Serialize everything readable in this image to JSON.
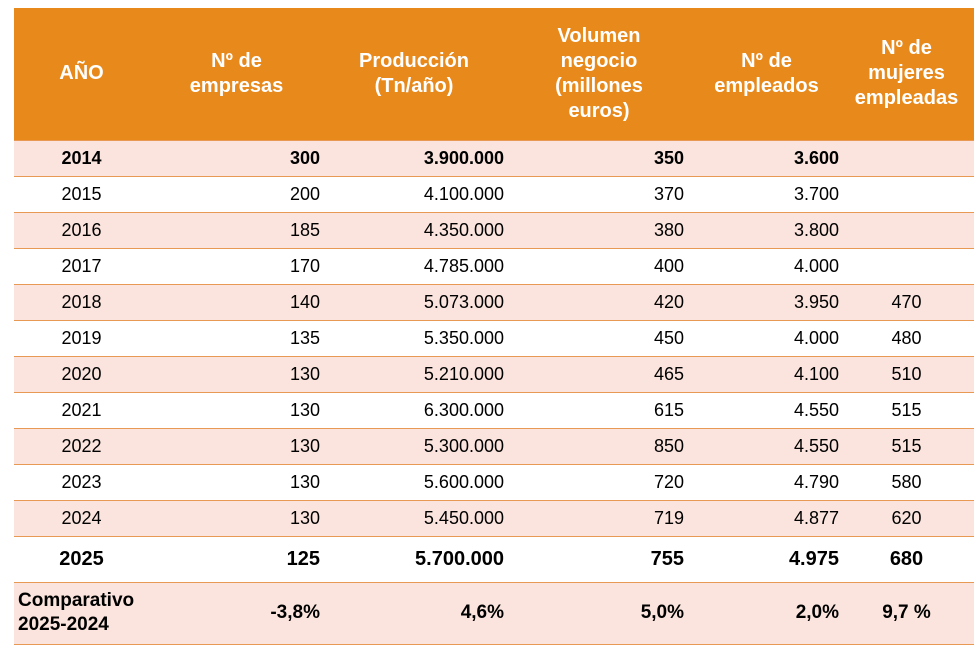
{
  "table": {
    "headers": [
      [
        "AÑO"
      ],
      [
        "Nº de",
        "empresas"
      ],
      [
        "Producción",
        "(Tn/año)"
      ],
      [
        "Volumen",
        "negocio",
        "(millones",
        "euros)"
      ],
      [
        "Nº de",
        "empleados"
      ],
      [
        "Nº de",
        "mujeres",
        "empleadas"
      ]
    ],
    "rows": [
      {
        "year": "2014",
        "empresas": "300",
        "produccion": "3.900.000",
        "volumen": "350",
        "empleados": "3.600",
        "mujeres": ""
      },
      {
        "year": "2015",
        "empresas": "200",
        "produccion": "4.100.000",
        "volumen": "370",
        "empleados": "3.700",
        "mujeres": ""
      },
      {
        "year": "2016",
        "empresas": "185",
        "produccion": "4.350.000",
        "volumen": "380",
        "empleados": "3.800",
        "mujeres": ""
      },
      {
        "year": "2017",
        "empresas": "170",
        "produccion": "4.785.000",
        "volumen": "400",
        "empleados": "4.000",
        "mujeres": ""
      },
      {
        "year": "2018",
        "empresas": "140",
        "produccion": "5.073.000",
        "volumen": "420",
        "empleados": "3.950",
        "mujeres": "470"
      },
      {
        "year": "2019",
        "empresas": "135",
        "produccion": "5.350.000",
        "volumen": "450",
        "empleados": "4.000",
        "mujeres": "480"
      },
      {
        "year": "2020",
        "empresas": "130",
        "produccion": "5.210.000",
        "volumen": "465",
        "empleados": "4.100",
        "mujeres": "510"
      },
      {
        "year": "2021",
        "empresas": "130",
        "produccion": "6.300.000",
        "volumen": "615",
        "empleados": "4.550",
        "mujeres": "515"
      },
      {
        "year": "2022",
        "empresas": "130",
        "produccion": "5.300.000",
        "volumen": "850",
        "empleados": "4.550",
        "mujeres": "515"
      },
      {
        "year": "2023",
        "empresas": "130",
        "produccion": "5.600.000",
        "volumen": "720",
        "empleados": "4.790",
        "mujeres": "580"
      },
      {
        "year": "2024",
        "empresas": "130",
        "produccion": "5.450.000",
        "volumen": "719",
        "empleados": "4.877",
        "mujeres": "620"
      }
    ],
    "total": {
      "year": "2025",
      "empresas": "125",
      "produccion": "5.700.000",
      "volumen": "755",
      "empleados": "4.975",
      "mujeres": "680"
    },
    "comparativo": {
      "label": [
        "Comparativo",
        "2025-2024"
      ],
      "empresas": "-3,8%",
      "produccion": "4,6%",
      "volumen": "5,0%",
      "empleados": "2,0%",
      "mujeres": "9,7 %"
    }
  },
  "colors": {
    "header_bg": "#e8891c",
    "header_text": "#ffffff",
    "row_alt_bg": "#fbe4dd",
    "row_border": "#e89a55"
  }
}
